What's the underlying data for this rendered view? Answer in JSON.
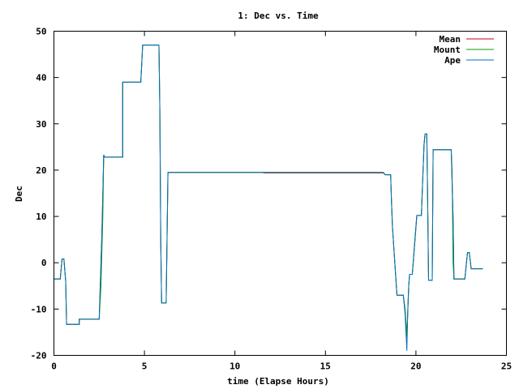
{
  "chart_data": {
    "type": "line",
    "title": "1: Dec vs. Time",
    "xlabel": "time (Elapse Hours)",
    "ylabel": "Dec",
    "xlim": [
      0,
      25
    ],
    "ylim": [
      -20,
      50
    ],
    "x_ticks": [
      0,
      5,
      10,
      15,
      20,
      25
    ],
    "y_ticks": [
      -20,
      -10,
      0,
      10,
      20,
      30,
      40,
      50
    ],
    "grid": false,
    "legend_position": "top-right",
    "series": [
      {
        "name": "Mean",
        "color": "#cc0000",
        "points": [
          [
            0,
            -3.5
          ],
          [
            0.35,
            -3.5
          ],
          [
            0.45,
            0.8
          ],
          [
            0.55,
            0.8
          ],
          [
            0.65,
            -4
          ],
          [
            0.7,
            -13.3
          ],
          [
            1.4,
            -13.3
          ],
          [
            1.4,
            -12.2
          ],
          [
            2.5,
            -12.2
          ],
          [
            2.65,
            6
          ],
          [
            2.75,
            23.3
          ],
          [
            2.8,
            22.8
          ],
          [
            3.8,
            22.8
          ],
          [
            3.8,
            39
          ],
          [
            4.8,
            39
          ],
          [
            4.85,
            43
          ],
          [
            4.9,
            47
          ],
          [
            5.8,
            47
          ],
          [
            5.85,
            33
          ],
          [
            5.9,
            5
          ],
          [
            5.95,
            -8.7
          ],
          [
            6.2,
            -8.7
          ],
          [
            6.3,
            19.5
          ],
          [
            11.6,
            19.5
          ],
          [
            11.6,
            19.4
          ],
          [
            18.2,
            19.4
          ],
          [
            18.3,
            19
          ],
          [
            18.6,
            19
          ],
          [
            18.65,
            13
          ],
          [
            18.7,
            8
          ],
          [
            18.8,
            2
          ],
          [
            18.95,
            -7
          ],
          [
            19.3,
            -7
          ],
          [
            19.4,
            -10
          ],
          [
            19.5,
            -16
          ],
          [
            19.6,
            -5
          ],
          [
            19.65,
            -2.5
          ],
          [
            19.8,
            -2.5
          ],
          [
            19.95,
            5
          ],
          [
            20.05,
            10.2
          ],
          [
            20.3,
            10.2
          ],
          [
            20.45,
            25.5
          ],
          [
            20.5,
            27.8
          ],
          [
            20.6,
            27.8
          ],
          [
            20.65,
            13
          ],
          [
            20.7,
            -3.8
          ],
          [
            20.9,
            -3.8
          ],
          [
            20.95,
            24.4
          ],
          [
            21.95,
            24.4
          ],
          [
            22.05,
            10
          ],
          [
            22.1,
            -3.5
          ],
          [
            22.7,
            -3.5
          ],
          [
            22.85,
            2.2
          ],
          [
            22.95,
            2.2
          ],
          [
            23.05,
            -1.3
          ],
          [
            23.7,
            -1.3
          ]
        ]
      },
      {
        "name": "Mount",
        "color": "#00a000",
        "points": [
          [
            0,
            -3.5
          ],
          [
            0.35,
            -3.5
          ],
          [
            0.45,
            0.8
          ],
          [
            0.55,
            0.8
          ],
          [
            0.65,
            -4
          ],
          [
            0.7,
            -13.3
          ],
          [
            1.4,
            -13.3
          ],
          [
            1.4,
            -12.2
          ],
          [
            2.5,
            -12.2
          ],
          [
            2.6,
            -5
          ],
          [
            2.7,
            10
          ],
          [
            2.75,
            23.3
          ],
          [
            2.8,
            22.8
          ],
          [
            3.8,
            22.8
          ],
          [
            3.8,
            39
          ],
          [
            4.8,
            39
          ],
          [
            4.85,
            43
          ],
          [
            4.9,
            47
          ],
          [
            5.8,
            47
          ],
          [
            5.85,
            33
          ],
          [
            5.9,
            5
          ],
          [
            5.95,
            -8.7
          ],
          [
            6.2,
            -8.7
          ],
          [
            6.3,
            19.5
          ],
          [
            18.2,
            19.5
          ],
          [
            18.3,
            19
          ],
          [
            18.6,
            19
          ],
          [
            18.65,
            13
          ],
          [
            18.7,
            8
          ],
          [
            18.8,
            2
          ],
          [
            18.95,
            -7
          ],
          [
            19.3,
            -7
          ],
          [
            19.4,
            -10
          ],
          [
            19.5,
            -16
          ],
          [
            19.6,
            -5
          ],
          [
            19.65,
            -2.5
          ],
          [
            19.8,
            -2.5
          ],
          [
            19.9,
            3
          ],
          [
            20.0,
            8
          ],
          [
            20.05,
            10.2
          ],
          [
            20.3,
            10.2
          ],
          [
            20.45,
            25.5
          ],
          [
            20.5,
            27.8
          ],
          [
            20.6,
            27.8
          ],
          [
            20.65,
            13
          ],
          [
            20.7,
            -3.8
          ],
          [
            20.9,
            -3.8
          ],
          [
            20.95,
            24.4
          ],
          [
            21.95,
            24.4
          ],
          [
            22.0,
            20
          ],
          [
            22.05,
            0
          ],
          [
            22.1,
            -3.5
          ],
          [
            22.7,
            -3.5
          ],
          [
            22.85,
            2.2
          ],
          [
            22.95,
            2.2
          ],
          [
            23.05,
            -1.3
          ],
          [
            23.7,
            -1.3
          ]
        ]
      },
      {
        "name": "Ape",
        "color": "#0070c0",
        "points": [
          [
            0,
            -3.5
          ],
          [
            0.35,
            -3.5
          ],
          [
            0.45,
            0.8
          ],
          [
            0.55,
            0.8
          ],
          [
            0.65,
            -4
          ],
          [
            0.7,
            -13.3
          ],
          [
            1.4,
            -13.3
          ],
          [
            1.4,
            -12.2
          ],
          [
            2.5,
            -12.2
          ],
          [
            2.65,
            6
          ],
          [
            2.75,
            23.3
          ],
          [
            2.8,
            22.8
          ],
          [
            3.8,
            22.8
          ],
          [
            3.8,
            39
          ],
          [
            4.8,
            39
          ],
          [
            4.85,
            43
          ],
          [
            4.9,
            47
          ],
          [
            5.8,
            47
          ],
          [
            5.85,
            33
          ],
          [
            5.9,
            5
          ],
          [
            5.95,
            -8.7
          ],
          [
            6.2,
            -8.7
          ],
          [
            6.3,
            19.5
          ],
          [
            18.2,
            19.5
          ],
          [
            18.3,
            19
          ],
          [
            18.6,
            19
          ],
          [
            18.65,
            13
          ],
          [
            18.7,
            8
          ],
          [
            18.8,
            2
          ],
          [
            18.95,
            -7
          ],
          [
            19.3,
            -7
          ],
          [
            19.4,
            -11
          ],
          [
            19.5,
            -19
          ],
          [
            19.55,
            -10
          ],
          [
            19.6,
            -5
          ],
          [
            19.65,
            -2.5
          ],
          [
            19.8,
            -2.5
          ],
          [
            19.95,
            5
          ],
          [
            20.05,
            10.2
          ],
          [
            20.3,
            10.2
          ],
          [
            20.45,
            25.5
          ],
          [
            20.5,
            27.8
          ],
          [
            20.6,
            27.8
          ],
          [
            20.65,
            13
          ],
          [
            20.7,
            -3.8
          ],
          [
            20.9,
            -3.8
          ],
          [
            20.95,
            24.4
          ],
          [
            21.95,
            24.4
          ],
          [
            22.05,
            10
          ],
          [
            22.1,
            -3.5
          ],
          [
            22.7,
            -3.5
          ],
          [
            22.85,
            2.2
          ],
          [
            22.95,
            2.2
          ],
          [
            23.05,
            -1.3
          ],
          [
            23.7,
            -1.3
          ]
        ]
      }
    ]
  }
}
